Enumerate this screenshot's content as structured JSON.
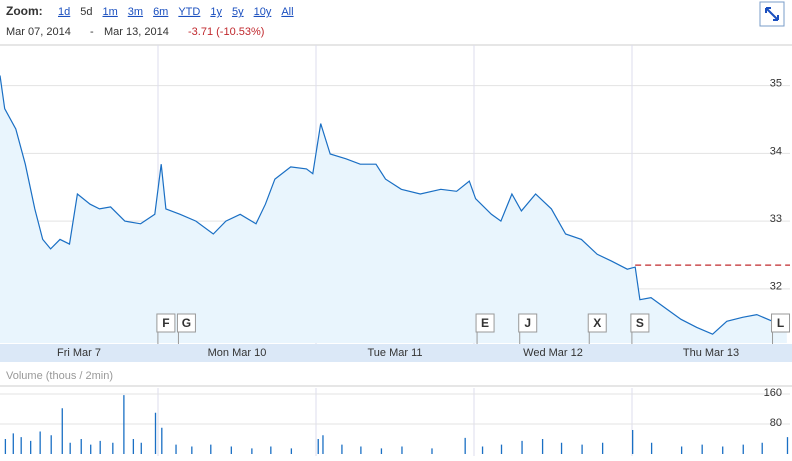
{
  "header": {
    "zoom_label": "Zoom:",
    "zoom_options": [
      "1d",
      "5d",
      "1m",
      "3m",
      "6m",
      "YTD",
      "1y",
      "5y",
      "10y",
      "All"
    ],
    "selected_index": 1,
    "start": "Mar 07, 2014",
    "separator": "-",
    "end": "Mar 13, 2014",
    "change": "-3.71 (-10.53%)"
  },
  "chart_data": [
    {
      "type": "area",
      "color": "#1a6fc4",
      "fill": "#e9f5fd",
      "x_bands": [
        "Fri Mar 7",
        "Mon Mar 10",
        "Tue Mar 11",
        "Wed Mar 12",
        "Thu Mar 13"
      ],
      "xlim": [
        0,
        5
      ],
      "ylim": [
        31.2,
        35.6
      ],
      "yticks": [
        32,
        33,
        34,
        35
      ],
      "grid": true,
      "x": [
        0,
        0.03,
        0.1,
        0.16,
        0.22,
        0.27,
        0.32,
        0.38,
        0.44,
        0.49,
        0.57,
        0.63,
        0.7,
        0.79,
        0.89,
        0.98,
        1.02,
        1.05,
        1.14,
        1.24,
        1.35,
        1.43,
        1.52,
        1.62,
        1.68,
        1.74,
        1.84,
        1.94,
        1.98,
        2.03,
        2.09,
        2.19,
        2.28,
        2.38,
        2.44,
        2.54,
        2.66,
        2.79,
        2.89,
        2.97,
        3.01,
        3.11,
        3.17,
        3.24,
        3.3,
        3.39,
        3.49,
        3.58,
        3.68,
        3.78,
        3.87,
        3.97,
        4.02,
        4.05,
        4.12,
        4.22,
        4.31,
        4.41,
        4.51,
        4.6,
        4.7,
        4.79,
        4.89,
        4.98
      ],
      "values": [
        35.15,
        34.66,
        34.36,
        33.84,
        33.18,
        32.73,
        32.59,
        32.73,
        32.66,
        33.4,
        33.25,
        33.18,
        33.21,
        33.0,
        32.96,
        33.1,
        33.84,
        33.18,
        33.1,
        33.0,
        32.81,
        33.0,
        33.1,
        32.96,
        33.25,
        33.62,
        33.8,
        33.77,
        33.7,
        34.44,
        33.99,
        33.92,
        33.84,
        33.84,
        33.62,
        33.47,
        33.4,
        33.47,
        33.44,
        33.59,
        33.33,
        33.1,
        33.0,
        33.4,
        33.15,
        33.4,
        33.18,
        32.81,
        32.73,
        32.51,
        32.41,
        32.29,
        32.32,
        31.84,
        31.87,
        31.7,
        31.55,
        31.43,
        31.33,
        31.52,
        31.58,
        31.62,
        31.52,
        31.43
      ],
      "reference_line": {
        "value": 32.35,
        "x_start": 4.02,
        "color": "#c0282d"
      },
      "flags": [
        {
          "label": "F",
          "x": 1.05
        },
        {
          "label": "G",
          "x": 1.18
        },
        {
          "label": "E",
          "x": 3.07
        },
        {
          "label": "J",
          "x": 3.34
        },
        {
          "label": "X",
          "x": 3.78
        },
        {
          "label": "S",
          "x": 4.05
        },
        {
          "label": "L",
          "x": 4.94
        }
      ]
    },
    {
      "type": "bar",
      "color": "#1a6fc4",
      "ylabel": "Volume (thous / 2min)",
      "xlim": [
        0,
        5
      ],
      "ylim": [
        0,
        176
      ],
      "yticks": [
        80,
        160
      ],
      "x": [
        0.03,
        0.08,
        0.13,
        0.19,
        0.25,
        0.32,
        0.39,
        0.44,
        0.51,
        0.57,
        0.63,
        0.71,
        0.78,
        0.84,
        0.89,
        0.98,
        1.02,
        1.11,
        1.21,
        1.33,
        1.46,
        1.59,
        1.71,
        1.84,
        2.01,
        2.04,
        2.16,
        2.28,
        2.41,
        2.54,
        2.73,
        2.94,
        3.05,
        3.17,
        3.3,
        3.43,
        3.55,
        3.68,
        3.81,
        4.0,
        4.12,
        4.31,
        4.44,
        4.57,
        4.7,
        4.82,
        4.98
      ],
      "values": [
        40,
        55,
        45,
        35,
        60,
        50,
        122,
        30,
        40,
        25,
        35,
        30,
        157,
        40,
        30,
        110,
        70,
        25,
        20,
        25,
        20,
        15,
        20,
        15,
        40,
        50,
        25,
        20,
        15,
        20,
        15,
        43,
        20,
        25,
        35,
        40,
        30,
        25,
        30,
        64,
        30,
        20,
        25,
        20,
        25,
        30,
        45
      ]
    }
  ]
}
